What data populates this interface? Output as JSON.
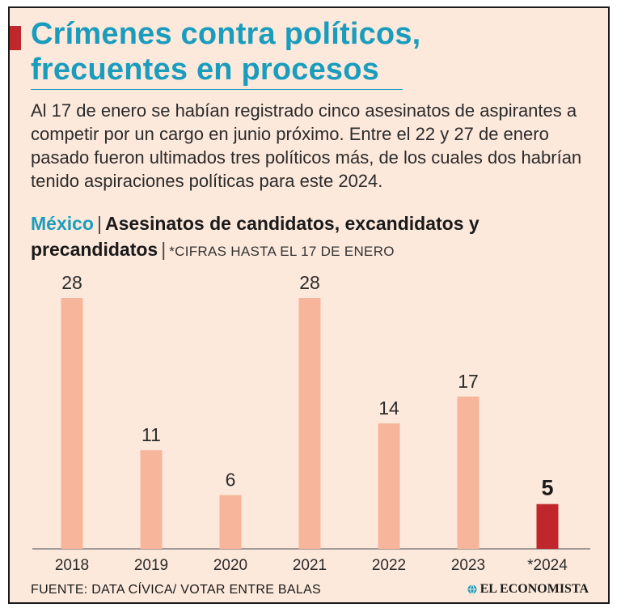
{
  "header": {
    "title_line1": "Crímenes contra políticos,",
    "title_line2": "frecuentes en procesos",
    "intro": "Al 17 de enero se habían registrado cinco asesinatos de aspirantes a competir por un cargo en junio próximo. Entre el 22 y 27 de enero pasado fueron ultimados tres políticos más, de los cuales dos habrían tenido aspiraciones políticas para este 2024."
  },
  "subtitle": {
    "region": "México",
    "separator": "|",
    "main": "Asesinatos de candidatos, excandidatos y precandidatos",
    "note": "*CIFRAS HASTA EL 17 DE ENERO"
  },
  "chart_data": {
    "type": "bar",
    "title": "Asesinatos de candidatos, excandidatos y precandidatos",
    "categories": [
      "2018",
      "2019",
      "2020",
      "2021",
      "2022",
      "2023",
      "*2024"
    ],
    "values": [
      28,
      11,
      6,
      28,
      14,
      17,
      5
    ],
    "highlight_index": 6,
    "xlabel": "",
    "ylabel": "",
    "ylim": [
      0,
      30
    ],
    "grid": false,
    "colors": {
      "bar": "#f7b59b",
      "highlight": "#c0272d",
      "axis": "#6b6b6b",
      "label": "#2b2b2b"
    }
  },
  "footer": {
    "source": "FUENTE: DATA CÍVICA/ VOTAR ENTRE BALAS",
    "brand": "EL ECONOMISTA"
  }
}
